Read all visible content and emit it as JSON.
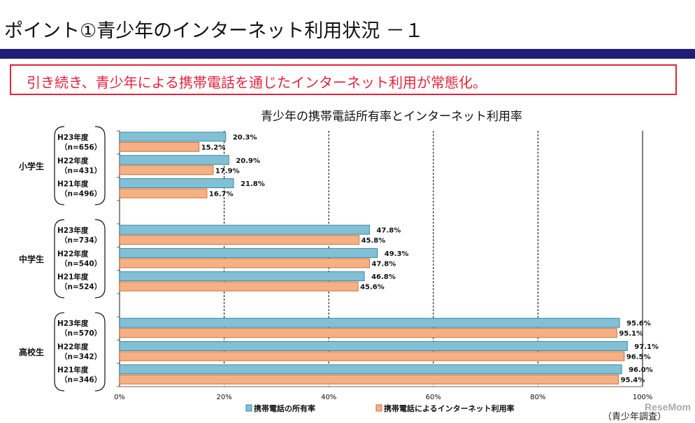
{
  "slide": {
    "title": "ポイント①青少年のインターネット利用状況 －１",
    "callout": "引き続き、青少年による携帯電話を通じたインターネット利用が常態化。",
    "source": "（青少年調査）",
    "logo": "ReseMom"
  },
  "colors": {
    "ownership": "#82c0d6",
    "internet": "#f5b183",
    "band": "#1e1e78",
    "callout": "#e2233b"
  },
  "chart_data": {
    "type": "bar",
    "orientation": "horizontal",
    "title": "青少年の携帯電話所有率とインターネット利用率",
    "xlim": [
      0,
      100
    ],
    "xticks": [
      "0%",
      "20%",
      "40%",
      "60%",
      "80%",
      "100%"
    ],
    "grid": "vertical dashed",
    "legend_position": "bottom",
    "groups": [
      {
        "name": "小学生",
        "rows": [
          {
            "year": "H23年度",
            "n": "（n=656）",
            "ownership": 20.3,
            "internet": 15.2
          },
          {
            "year": "H22年度",
            "n": "（n=431）",
            "ownership": 20.9,
            "internet": 17.9
          },
          {
            "year": "H21年度",
            "n": "（n=496）",
            "ownership": 21.8,
            "internet": 16.7
          }
        ]
      },
      {
        "name": "中学生",
        "rows": [
          {
            "year": "H23年度",
            "n": "（n=734）",
            "ownership": 47.8,
            "internet": 45.8
          },
          {
            "year": "H22年度",
            "n": "（n=540）",
            "ownership": 49.3,
            "internet": 47.8
          },
          {
            "year": "H21年度",
            "n": "（n=524）",
            "ownership": 46.8,
            "internet": 45.6
          }
        ]
      },
      {
        "name": "高校生",
        "rows": [
          {
            "year": "H23年度",
            "n": "（n=570）",
            "ownership": 95.6,
            "internet": 95.1
          },
          {
            "year": "H22年度",
            "n": "（n=342）",
            "ownership": 97.1,
            "internet": 96.5
          },
          {
            "year": "H21年度",
            "n": "（n=346）",
            "ownership": 96.0,
            "internet": 95.4
          }
        ]
      }
    ],
    "series": [
      {
        "name": "携帯電話の所有率",
        "key": "ownership"
      },
      {
        "name": "携帯電話によるインターネット利用率",
        "key": "internet"
      }
    ]
  }
}
